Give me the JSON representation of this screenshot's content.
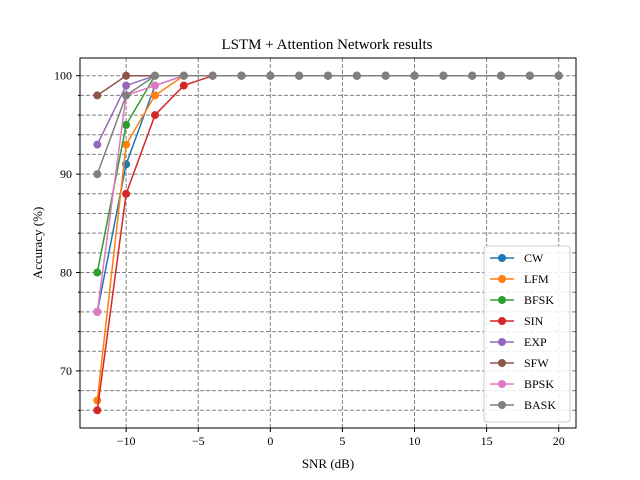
{
  "chart_data": {
    "type": "line",
    "title": "LSTM + Attention Network results",
    "xlabel": "SNR (dB)",
    "ylabel": "Accuracy (%)",
    "xlim": [
      -13.2,
      21.2
    ],
    "ylim": [
      64.2,
      101.8
    ],
    "xticks": [
      -10,
      -5,
      0,
      5,
      10,
      15,
      20
    ],
    "xtick_labels": [
      "−10",
      "−5",
      "0",
      "5",
      "10",
      "15",
      "20"
    ],
    "yticks": [
      70,
      80,
      90,
      100
    ],
    "ytick_labels": [
      "70",
      "80",
      "90",
      "100"
    ],
    "y_minor_gridlines": [
      66,
      68,
      72,
      74,
      76,
      78,
      82,
      84,
      86,
      88,
      92,
      94,
      96,
      98
    ],
    "grid": true,
    "legend_position": "lower-right",
    "x": [
      -12,
      -10,
      -8,
      -6,
      -4,
      -2,
      0,
      2,
      4,
      6,
      8,
      10,
      12,
      14,
      16,
      18,
      20
    ],
    "series": [
      {
        "name": "CW",
        "color": "#1f77b4",
        "values": [
          76,
          91,
          99,
          100,
          100,
          100,
          100,
          100,
          100,
          100,
          100,
          100,
          100,
          100,
          100,
          100,
          100
        ]
      },
      {
        "name": "LFM",
        "color": "#ff7f0e",
        "values": [
          67,
          93,
          98,
          100,
          100,
          100,
          100,
          100,
          100,
          100,
          100,
          100,
          100,
          100,
          100,
          100,
          100
        ]
      },
      {
        "name": "BFSK",
        "color": "#2ca02c",
        "values": [
          80,
          95,
          100,
          100,
          100,
          100,
          100,
          100,
          100,
          100,
          100,
          100,
          100,
          100,
          100,
          100,
          100
        ]
      },
      {
        "name": "SIN",
        "color": "#d62728",
        "values": [
          66,
          88,
          96,
          99,
          100,
          100,
          100,
          100,
          100,
          100,
          100,
          100,
          100,
          100,
          100,
          100,
          100
        ]
      },
      {
        "name": "EXP",
        "color": "#9467bd",
        "values": [
          93,
          99,
          100,
          100,
          100,
          100,
          100,
          100,
          100,
          100,
          100,
          100,
          100,
          100,
          100,
          100,
          100
        ]
      },
      {
        "name": "SFW",
        "color": "#8c564b",
        "values": [
          98,
          100,
          100,
          100,
          100,
          100,
          100,
          100,
          100,
          100,
          100,
          100,
          100,
          100,
          100,
          100,
          100
        ]
      },
      {
        "name": "BPSK",
        "color": "#e377c2",
        "values": [
          76,
          98,
          99,
          100,
          100,
          100,
          100,
          100,
          100,
          100,
          100,
          100,
          100,
          100,
          100,
          100,
          100
        ]
      },
      {
        "name": "BASK",
        "color": "#7f7f7f",
        "values": [
          90,
          98,
          100,
          100,
          100,
          100,
          100,
          100,
          100,
          100,
          100,
          100,
          100,
          100,
          100,
          100,
          100
        ]
      }
    ]
  }
}
